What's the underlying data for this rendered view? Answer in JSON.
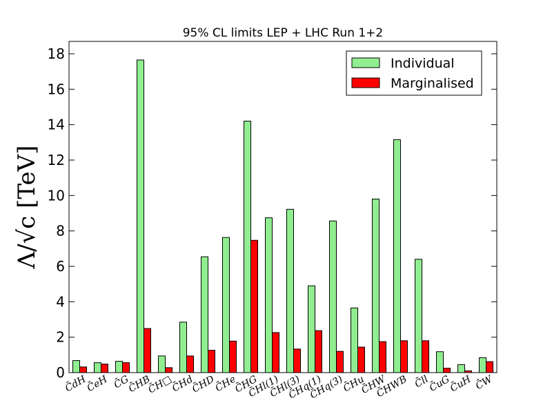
{
  "chart_data": {
    "type": "bar",
    "title": "95% CL limits LEP + LHC Run 1+2",
    "xlabel": "",
    "ylabel": "Λ/√c [TeV]",
    "ylim": [
      0,
      18.7
    ],
    "yticks": [
      "0",
      "2",
      "4",
      "6",
      "8",
      "10",
      "12",
      "14",
      "16",
      "18"
    ],
    "categories": [
      "C̄dH",
      "C̄eH",
      "C̄G",
      "C̄HB",
      "C̄H□",
      "C̄Hd",
      "C̄HD",
      "C̄He",
      "C̄HG",
      "C̄Hl(1)",
      "C̄Hl(3)",
      "C̄Hq(1)",
      "C̄Hq(3)",
      "C̄Hu",
      "C̄HW",
      "C̄HWB",
      "C̄ll",
      "C̄uG",
      "C̄uH",
      "C̄W"
    ],
    "series": [
      {
        "name": "Individual",
        "color": "#90ee90",
        "values": [
          0.68,
          0.56,
          0.64,
          17.65,
          0.94,
          2.85,
          6.54,
          7.63,
          14.2,
          8.74,
          9.22,
          4.9,
          8.56,
          3.65,
          9.8,
          13.15,
          6.4,
          1.18,
          0.45,
          0.84
        ]
      },
      {
        "name": "Marginalised",
        "color": "#ff0000",
        "values": [
          0.32,
          0.48,
          0.56,
          2.49,
          0.28,
          0.94,
          1.26,
          1.78,
          7.47,
          2.26,
          1.33,
          2.37,
          1.2,
          1.44,
          1.75,
          1.8,
          1.8,
          0.25,
          0.1,
          0.62
        ]
      }
    ],
    "legend_position": "top-right",
    "grid": false
  }
}
